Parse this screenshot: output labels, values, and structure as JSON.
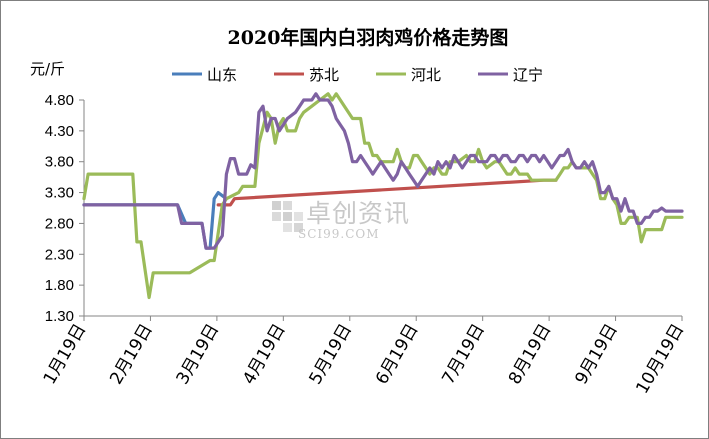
{
  "chart_data": {
    "type": "line",
    "title": "2020年国内白羽肉鸡价格走势图",
    "ylabel": "元/斤",
    "xlabel": "",
    "ylim": [
      1.3,
      4.8
    ],
    "yticks": [
      "4.80",
      "4.30",
      "3.80",
      "3.30",
      "2.80",
      "2.30",
      "1.80",
      "1.30"
    ],
    "categories": [
      "1月19日",
      "2月19日",
      "3月19日",
      "4月19日",
      "5月19日",
      "6月19日",
      "7月19日",
      "8月19日",
      "9月19日",
      "10月19日"
    ],
    "grid": false,
    "legend": "top",
    "series": [
      {
        "name": "山东",
        "color": "#4a7ebb",
        "points": [
          [
            0,
            3.1
          ],
          [
            23,
            3.1
          ],
          [
            25,
            2.8
          ],
          [
            29,
            2.8
          ],
          [
            30,
            2.4
          ],
          [
            31,
            2.4
          ],
          [
            32,
            3.2
          ],
          [
            33,
            3.3
          ],
          [
            34,
            3.25
          ],
          [
            35,
            3.2
          ]
        ]
      },
      {
        "name": "苏北",
        "color": "#c0504d",
        "points": [
          [
            33,
            3.1
          ],
          [
            34,
            3.1
          ],
          [
            36,
            3.1
          ],
          [
            37,
            3.2
          ],
          [
            113,
            3.5
          ],
          [
            115,
            3.5
          ],
          [
            116,
            3.5
          ]
        ]
      },
      {
        "name": "河北",
        "color": "#9bbb59",
        "points": [
          [
            0,
            3.2
          ],
          [
            1,
            3.6
          ],
          [
            12,
            3.6
          ],
          [
            13,
            2.5
          ],
          [
            14,
            2.5
          ],
          [
            16,
            1.6
          ],
          [
            17,
            2.0
          ],
          [
            18,
            2.0
          ],
          [
            24,
            2.0
          ],
          [
            26,
            2.0
          ],
          [
            31,
            2.2
          ],
          [
            32,
            2.2
          ],
          [
            34,
            3.1
          ],
          [
            35,
            3.2
          ],
          [
            38,
            3.3
          ],
          [
            39,
            3.4
          ],
          [
            42,
            3.4
          ],
          [
            43,
            4.1
          ],
          [
            45,
            4.6
          ],
          [
            46,
            4.5
          ],
          [
            47,
            4.1
          ],
          [
            48,
            4.4
          ],
          [
            49,
            4.5
          ],
          [
            50,
            4.3
          ],
          [
            52,
            4.3
          ],
          [
            53,
            4.5
          ],
          [
            54,
            4.6
          ],
          [
            56,
            4.7
          ],
          [
            58,
            4.8
          ],
          [
            60,
            4.9
          ],
          [
            61,
            4.8
          ],
          [
            62,
            4.9
          ],
          [
            63,
            4.8
          ],
          [
            64,
            4.7
          ],
          [
            66,
            4.5
          ],
          [
            67,
            4.5
          ],
          [
            68,
            4.5
          ],
          [
            69,
            4.1
          ],
          [
            70,
            4.1
          ],
          [
            71,
            3.9
          ],
          [
            72,
            3.9
          ],
          [
            73,
            3.8
          ],
          [
            74,
            3.8
          ],
          [
            75,
            3.8
          ],
          [
            76,
            3.8
          ],
          [
            77,
            4.0
          ],
          [
            78,
            3.8
          ],
          [
            79,
            3.7
          ],
          [
            80,
            3.7
          ],
          [
            81,
            3.9
          ],
          [
            82,
            3.9
          ],
          [
            83,
            3.8
          ],
          [
            84,
            3.7
          ],
          [
            85,
            3.6
          ],
          [
            86,
            3.7
          ],
          [
            87,
            3.7
          ],
          [
            88,
            3.6
          ],
          [
            89,
            3.6
          ],
          [
            90,
            3.8
          ],
          [
            91,
            3.8
          ],
          [
            92,
            3.8
          ],
          [
            94,
            3.9
          ],
          [
            95,
            3.8
          ],
          [
            96,
            3.8
          ],
          [
            97,
            4.0
          ],
          [
            98,
            3.8
          ],
          [
            99,
            3.7
          ],
          [
            101,
            3.8
          ],
          [
            102,
            3.8
          ],
          [
            103,
            3.7
          ],
          [
            104,
            3.6
          ],
          [
            105,
            3.6
          ],
          [
            106,
            3.7
          ],
          [
            107,
            3.6
          ],
          [
            108,
            3.6
          ],
          [
            109,
            3.6
          ],
          [
            110,
            3.5
          ],
          [
            111,
            3.5
          ],
          [
            112,
            3.5
          ],
          [
            114,
            3.5
          ],
          [
            116,
            3.5
          ],
          [
            117,
            3.6
          ],
          [
            118,
            3.7
          ],
          [
            119,
            3.7
          ],
          [
            120,
            3.8
          ],
          [
            121,
            3.7
          ],
          [
            122,
            3.7
          ],
          [
            123,
            3.7
          ],
          [
            124,
            3.7
          ],
          [
            125,
            3.6
          ],
          [
            126,
            3.5
          ],
          [
            127,
            3.2
          ],
          [
            128,
            3.2
          ],
          [
            129,
            3.4
          ],
          [
            130,
            3.2
          ],
          [
            131,
            3.1
          ],
          [
            132,
            2.8
          ],
          [
            133,
            2.8
          ],
          [
            134,
            2.9
          ],
          [
            135,
            2.9
          ],
          [
            136,
            2.9
          ],
          [
            137,
            2.5
          ],
          [
            138,
            2.7
          ],
          [
            139,
            2.7
          ],
          [
            140,
            2.7
          ],
          [
            141,
            2.7
          ],
          [
            142,
            2.7
          ],
          [
            143,
            2.9
          ],
          [
            144,
            2.9
          ],
          [
            146,
            2.9
          ],
          [
            147,
            2.9
          ]
        ]
      },
      {
        "name": "辽宁",
        "color": "#7f62a2",
        "points": [
          [
            0,
            3.1
          ],
          [
            23,
            3.1
          ],
          [
            24,
            2.8
          ],
          [
            29,
            2.8
          ],
          [
            30,
            2.4
          ],
          [
            32,
            2.4
          ],
          [
            34,
            2.6
          ],
          [
            35,
            3.6
          ],
          [
            36,
            3.85
          ],
          [
            37,
            3.85
          ],
          [
            38,
            3.6
          ],
          [
            40,
            3.6
          ],
          [
            41,
            3.75
          ],
          [
            42,
            3.7
          ],
          [
            43,
            4.6
          ],
          [
            44,
            4.7
          ],
          [
            45,
            4.3
          ],
          [
            46,
            4.5
          ],
          [
            47,
            4.5
          ],
          [
            48,
            4.3
          ],
          [
            49,
            4.4
          ],
          [
            50,
            4.5
          ],
          [
            52,
            4.6
          ],
          [
            53,
            4.7
          ],
          [
            54,
            4.8
          ],
          [
            56,
            4.8
          ],
          [
            57,
            4.9
          ],
          [
            58,
            4.8
          ],
          [
            60,
            4.8
          ],
          [
            61,
            4.7
          ],
          [
            62,
            4.5
          ],
          [
            63,
            4.4
          ],
          [
            64,
            4.3
          ],
          [
            65,
            4.1
          ],
          [
            66,
            3.8
          ],
          [
            67,
            3.8
          ],
          [
            68,
            3.9
          ],
          [
            69,
            3.8
          ],
          [
            70,
            3.7
          ],
          [
            71,
            3.6
          ],
          [
            72,
            3.7
          ],
          [
            73,
            3.8
          ],
          [
            74,
            3.7
          ],
          [
            75,
            3.6
          ],
          [
            76,
            3.5
          ],
          [
            77,
            3.6
          ],
          [
            78,
            3.8
          ],
          [
            79,
            3.7
          ],
          [
            80,
            3.6
          ],
          [
            81,
            3.5
          ],
          [
            82,
            3.4
          ],
          [
            83,
            3.5
          ],
          [
            84,
            3.6
          ],
          [
            85,
            3.7
          ],
          [
            86,
            3.6
          ],
          [
            87,
            3.8
          ],
          [
            88,
            3.7
          ],
          [
            89,
            3.8
          ],
          [
            90,
            3.7
          ],
          [
            91,
            3.9
          ],
          [
            92,
            3.8
          ],
          [
            93,
            3.7
          ],
          [
            94,
            3.8
          ],
          [
            95,
            3.9
          ],
          [
            96,
            3.9
          ],
          [
            97,
            3.8
          ],
          [
            98,
            3.8
          ],
          [
            99,
            3.8
          ],
          [
            100,
            3.9
          ],
          [
            101,
            3.9
          ],
          [
            102,
            3.8
          ],
          [
            103,
            3.9
          ],
          [
            104,
            3.9
          ],
          [
            105,
            3.8
          ],
          [
            106,
            3.8
          ],
          [
            107,
            3.9
          ],
          [
            108,
            3.9
          ],
          [
            109,
            3.8
          ],
          [
            110,
            3.9
          ],
          [
            111,
            3.9
          ],
          [
            112,
            3.8
          ],
          [
            113,
            3.9
          ],
          [
            114,
            3.8
          ],
          [
            115,
            3.7
          ],
          [
            116,
            3.8
          ],
          [
            117,
            3.9
          ],
          [
            118,
            3.9
          ],
          [
            119,
            4.0
          ],
          [
            120,
            3.8
          ],
          [
            121,
            3.7
          ],
          [
            122,
            3.7
          ],
          [
            123,
            3.8
          ],
          [
            124,
            3.7
          ],
          [
            125,
            3.8
          ],
          [
            126,
            3.6
          ],
          [
            127,
            3.3
          ],
          [
            128,
            3.3
          ],
          [
            129,
            3.4
          ],
          [
            130,
            3.2
          ],
          [
            131,
            3.2
          ],
          [
            132,
            3.0
          ],
          [
            133,
            3.2
          ],
          [
            134,
            3.0
          ],
          [
            135,
            3.0
          ],
          [
            136,
            2.8
          ],
          [
            137,
            2.8
          ],
          [
            138,
            2.9
          ],
          [
            139,
            2.9
          ],
          [
            140,
            3.0
          ],
          [
            141,
            3.0
          ],
          [
            142,
            3.05
          ],
          [
            143,
            3.0
          ],
          [
            144,
            3.0
          ],
          [
            145,
            3.0
          ],
          [
            146,
            3.0
          ],
          [
            147,
            3.0
          ]
        ]
      }
    ]
  },
  "watermark": {
    "cn": "卓创资讯",
    "en": "SCI99.COM"
  }
}
